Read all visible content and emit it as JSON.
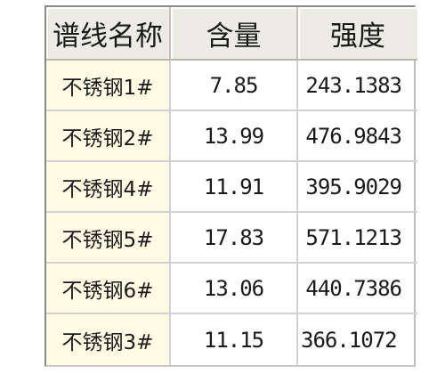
{
  "table": {
    "headers": [
      "谱线名称",
      "含量",
      "强度"
    ],
    "rows": [
      {
        "name": "不锈钢1#",
        "content": "7.85",
        "strength": "243.1383"
      },
      {
        "name": "不锈钢2#",
        "content": "13.99",
        "strength": "476.9843"
      },
      {
        "name": "不锈钢4#",
        "content": "11.91",
        "strength": "395.9029"
      },
      {
        "name": "不锈钢5#",
        "content": "17.83",
        "strength": "571.1213"
      },
      {
        "name": "不锈钢6#",
        "content": "13.06",
        "strength": "440.7386"
      },
      {
        "name": "不锈钢3#",
        "content": "11.15",
        "strength": "366.1072"
      }
    ]
  }
}
